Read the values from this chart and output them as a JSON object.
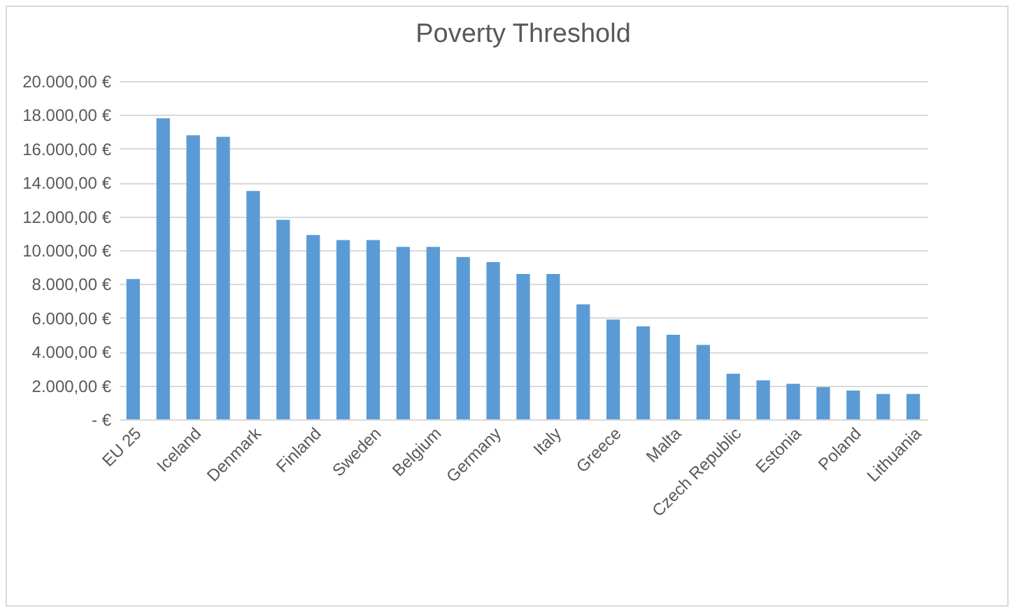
{
  "chart_data": {
    "type": "bar",
    "title": "Poverty Threshold",
    "categories": [
      "EU 25",
      null,
      "Iceland",
      null,
      "Denmark",
      null,
      "Finland",
      null,
      "Sweden",
      null,
      "Belgium",
      null,
      "Germany",
      null,
      "Italy",
      null,
      "Greece",
      null,
      "Malta",
      null,
      "Czech Republic",
      null,
      "Estonia",
      null,
      "Poland",
      null,
      "Lithuania"
    ],
    "values": [
      8300,
      17800,
      16800,
      16700,
      13500,
      11800,
      10900,
      10600,
      10600,
      10200,
      10200,
      9600,
      9300,
      8600,
      8600,
      6800,
      5900,
      5500,
      5000,
      4400,
      2700,
      2300,
      2100,
      1900,
      1700,
      1500,
      1500
    ],
    "color": "#5b9bd5",
    "ylim": [
      0,
      20000
    ],
    "yticks": [
      {
        "value": 0,
        "label": "-   €"
      },
      {
        "value": 2000,
        "label": "2.000,00 €"
      },
      {
        "value": 4000,
        "label": "4.000,00 €"
      },
      {
        "value": 6000,
        "label": "6.000,00 €"
      },
      {
        "value": 8000,
        "label": "8.000,00 €"
      },
      {
        "value": 10000,
        "label": "10.000,00 €"
      },
      {
        "value": 12000,
        "label": "12.000,00 €"
      },
      {
        "value": 14000,
        "label": "14.000,00 €"
      },
      {
        "value": 16000,
        "label": "16.000,00 €"
      },
      {
        "value": 18000,
        "label": "18.000,00 €"
      },
      {
        "value": 20000,
        "label": "20.000,00 €"
      }
    ],
    "grid": "y"
  }
}
